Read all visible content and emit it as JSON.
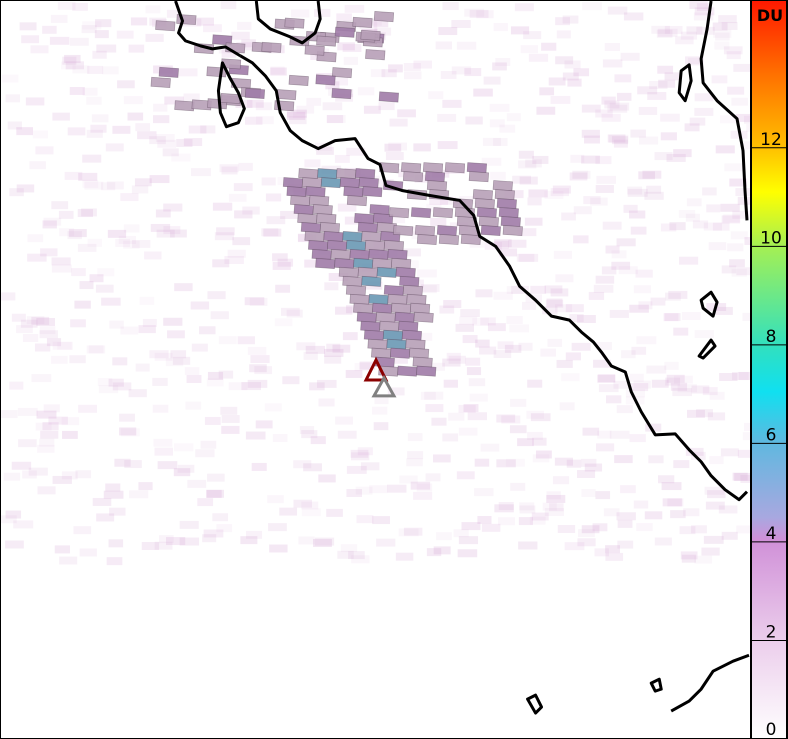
{
  "colorbar": {
    "unit_label": "DU",
    "ticks": [
      "0",
      "2",
      "4",
      "6",
      "8",
      "10",
      "12"
    ],
    "tick_values": [
      0,
      2,
      4,
      6,
      8,
      10,
      12
    ],
    "range": [
      0,
      15
    ],
    "colors": [
      "#ffffff",
      "#e8c8e8",
      "#c890d0",
      "#a0a8e0",
      "#60b8e0",
      "#10e0f0",
      "#40e0a0",
      "#a0f060",
      "#ffff00",
      "#ffc000",
      "#ff7000",
      "#ff2000"
    ]
  },
  "map": {
    "coastline_color": "#000000",
    "markers": [
      {
        "icon": "triangle-icon",
        "color": "#8b0000"
      },
      {
        "icon": "triangle-icon",
        "color": "#808080"
      }
    ],
    "plume_colors": {
      "low": "#b8a0b8",
      "mid": "#a07ca8",
      "high": "#6a98b4"
    }
  }
}
